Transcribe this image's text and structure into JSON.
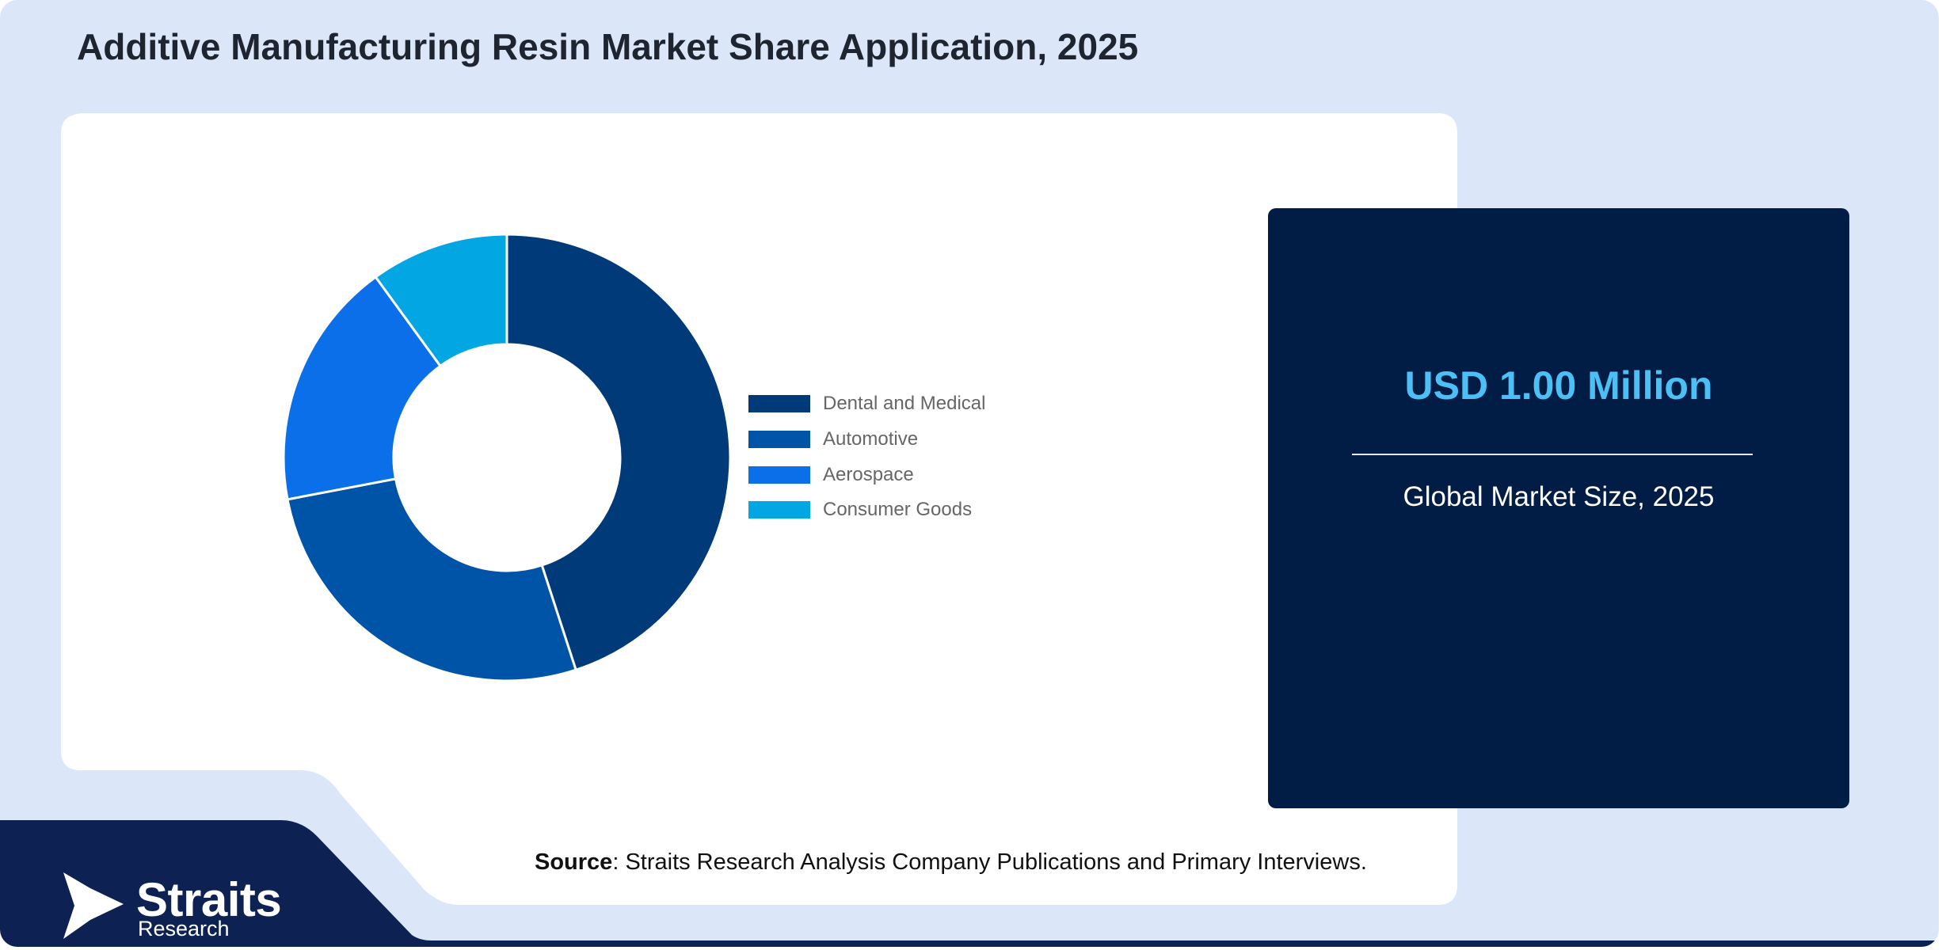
{
  "title": "Additive Manufacturing Resin Market Share Application, 2025",
  "chart_data": {
    "type": "pie",
    "donut": true,
    "categories": [
      "Dental and Medical",
      "Automotive",
      "Aerospace",
      "Consumer Goods"
    ],
    "values": [
      45,
      27,
      18,
      10
    ],
    "unit": "%",
    "legend": "right",
    "colors": [
      "#003a78",
      "#0054a8",
      "#0a6fe9",
      "#02a6e2"
    ]
  },
  "market": {
    "value": "USD 1.00 Million",
    "caption": "Global Market Size, 2025"
  },
  "source": {
    "label": "Source",
    "text": ": Straits Research Analysis Company Publications and Primary Interviews."
  },
  "logo": {
    "name": "Straits",
    "sub": "Research"
  },
  "colors": {
    "background": "#dbe7f9",
    "panel": "#ffffff",
    "info_box": "#011d46",
    "accent": "#4cc0f4",
    "footer": "#0d2252"
  }
}
